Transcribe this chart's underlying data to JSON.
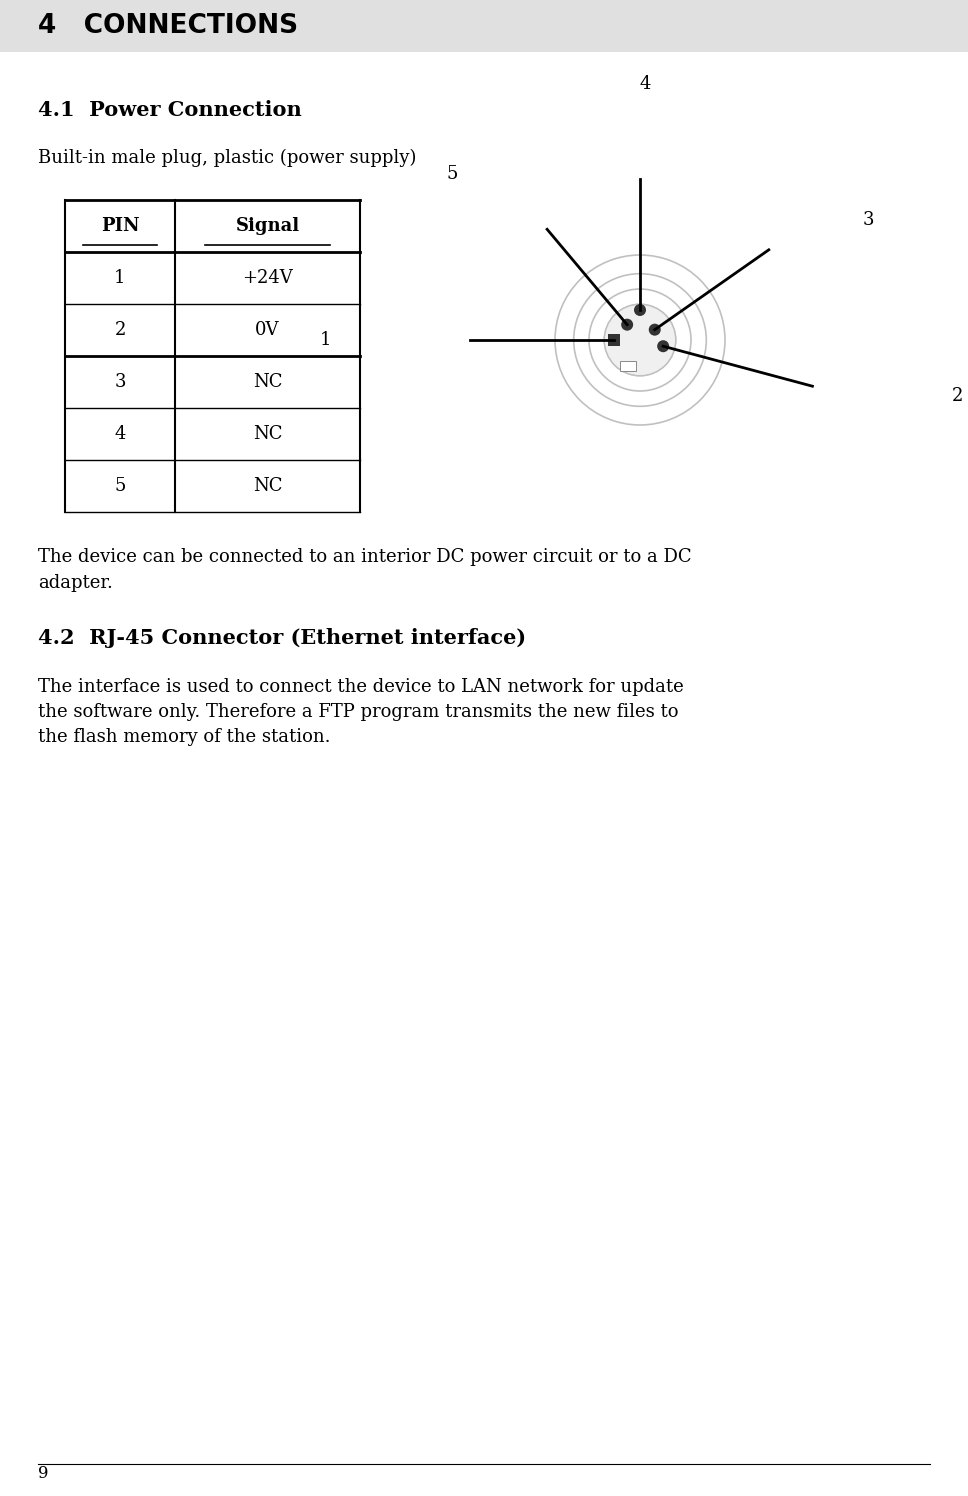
{
  "bg_color": "#ffffff",
  "header_bg": "#e0e0e0",
  "header_text": "4   CONNECTIONS",
  "header_fontsize": 19,
  "section_41_title": "4.1  Power Connection",
  "section_41_fontsize": 15,
  "subtitle_41": "Built-in male plug, plastic (power supply)",
  "table_pins": [
    "PIN",
    "1",
    "2",
    "3",
    "4",
    "5"
  ],
  "table_signals": [
    "Signal",
    "+24V",
    "0V",
    "NC",
    "NC",
    "NC"
  ],
  "para_41_line1": "The device can be connected to an interior DC power circuit or to a DC",
  "para_41_line2": "adapter.",
  "section_42_title": "4.2  RJ-45 Connector (Ethernet interface)",
  "section_42_fontsize": 15,
  "para_42_line1": "The interface is used to connect the device to LAN network for update",
  "para_42_line2": "the software only. Therefore a FTP program transmits the new files to",
  "para_42_line3": "the flash memory of the station.",
  "body_fontsize": 13,
  "footer_text": "9",
  "fig_w": 9.68,
  "fig_h": 14.96,
  "dpi": 100
}
